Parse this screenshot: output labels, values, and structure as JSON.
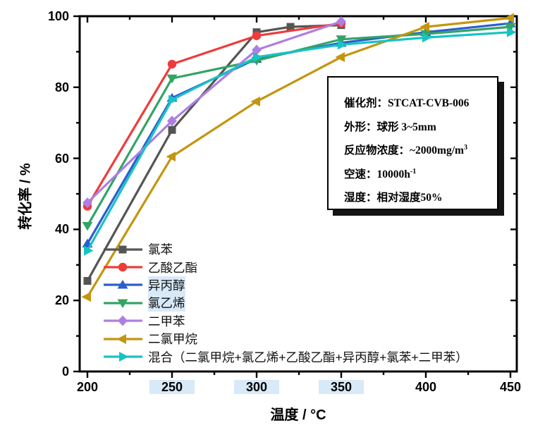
{
  "chart_data": {
    "type": "line",
    "title": "",
    "xlabel": "温度 / °C",
    "ylabel": "转化率 / %",
    "xlim": [
      195,
      454
    ],
    "ylim": [
      0,
      100
    ],
    "x_tick_labels": [
      "200",
      "250",
      "300",
      "350",
      "400",
      "450"
    ],
    "y_tick_labels": [
      "0",
      "20",
      "40",
      "60",
      "80",
      "100"
    ],
    "x_major_ticks": [
      200,
      250,
      300,
      350,
      400,
      450
    ],
    "x_minor_ticks": [
      225,
      275,
      325,
      375,
      425
    ],
    "y_major_ticks": [
      0,
      20,
      40,
      60,
      80,
      100
    ],
    "y_minor_ticks": [
      10,
      30,
      50,
      70,
      90
    ],
    "grid": false,
    "legend_position": "inside lower-left",
    "series": [
      {
        "name": "氯苯",
        "color": "#555555",
        "marker": "square",
        "x": [
          200,
          250,
          300,
          320,
          350
        ],
        "y": [
          25.5,
          68,
          95.5,
          97,
          97.5
        ]
      },
      {
        "name": "乙酸乙酯",
        "color": "#ee3b3b",
        "marker": "circle",
        "x": [
          200,
          250,
          300,
          350
        ],
        "y": [
          46.5,
          86.5,
          94.5,
          98
        ]
      },
      {
        "name": "异丙醇",
        "color": "#2c5dd0",
        "marker": "triangle-up",
        "x": [
          200,
          250,
          300,
          350,
          400,
          450
        ],
        "y": [
          36,
          77,
          88,
          92.5,
          95.5,
          98
        ]
      },
      {
        "name": "氯乙烯",
        "color": "#33a466",
        "marker": "triangle-down",
        "x": [
          200,
          250,
          300,
          350,
          400,
          450
        ],
        "y": [
          41,
          82.5,
          87.5,
          93.5,
          95,
          97
        ]
      },
      {
        "name": "二甲苯",
        "color": "#ae7fe2",
        "marker": "diamond",
        "x": [
          200,
          250,
          300,
          350
        ],
        "y": [
          47.5,
          70.5,
          90.5,
          98.5
        ]
      },
      {
        "name": "二氯甲烷",
        "color": "#c4950f",
        "marker": "triangle-left",
        "x": [
          200,
          250,
          300,
          350,
          400,
          450
        ],
        "y": [
          21,
          60.5,
          76,
          88.5,
          97,
          99.5
        ]
      },
      {
        "name": "混合（二氯甲烷+氯乙烯+乙酸乙酯+异丙醇+氯苯+二甲苯）",
        "color": "#17c3c3",
        "marker": "triangle-right",
        "x": [
          200,
          250,
          300,
          350,
          400,
          450
        ],
        "y": [
          34,
          76.5,
          88.5,
          92,
          94,
          95.5
        ]
      }
    ]
  },
  "info_box": {
    "lines": [
      {
        "text": "催化剂：STCAT-CVB-006",
        "sup": ""
      },
      {
        "text": "外形：球形 3~5mm",
        "sup": ""
      },
      {
        "text": "反应物浓度：~2000mg/m",
        "sup": "3"
      },
      {
        "text": "空速：10000h",
        "sup": "-1"
      },
      {
        "text": "湿度：相对湿度50%",
        "sup": ""
      }
    ]
  }
}
